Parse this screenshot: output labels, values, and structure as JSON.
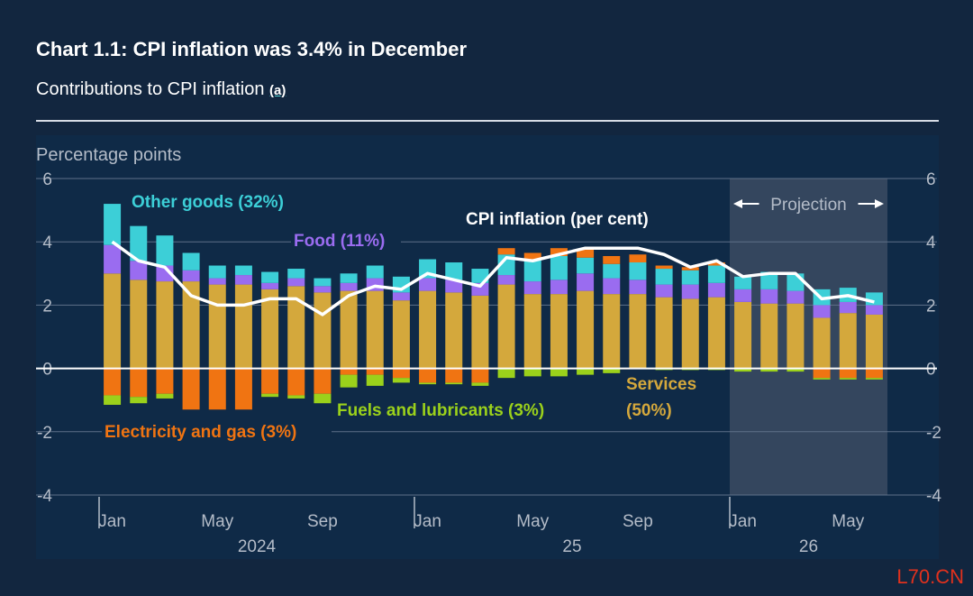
{
  "header": {
    "title": "Chart 1.1: CPI inflation was 3.4% in December",
    "subtitle": "Contributions to CPI inflation ",
    "footnote_marker": "(a)"
  },
  "watermark": "L70.CN",
  "colors": {
    "services": "#d4a83c",
    "food": "#9a6cf0",
    "other_goods": "#3ccfd7",
    "fuels": "#9bd11b",
    "electricity": "#f07412",
    "cpi_line": "#ffffff",
    "projection_bg": "#3b4b63"
  },
  "chart_data": {
    "type": "bar",
    "stacked": true,
    "title": "Chart 1.1: CPI inflation was 3.4% in December",
    "subtitle": "Contributions to CPI inflation (a)",
    "ylabel": "Percentage points",
    "ylim": [
      -4,
      6
    ],
    "yticks": [
      -4,
      -2,
      0,
      2,
      4,
      6
    ],
    "grid": true,
    "x_month_labels": [
      {
        "label": "Jan",
        "index": 0
      },
      {
        "label": "May",
        "index": 4
      },
      {
        "label": "Sep",
        "index": 8
      },
      {
        "label": "Jan",
        "index": 12
      },
      {
        "label": "May",
        "index": 16
      },
      {
        "label": "Sep",
        "index": 20
      },
      {
        "label": "Jan",
        "index": 24
      },
      {
        "label": "May",
        "index": 28
      }
    ],
    "x_year_labels": [
      {
        "label": "2024",
        "start": 0,
        "end": 11
      },
      {
        "label": "25",
        "start": 12,
        "end": 23
      },
      {
        "label": "26",
        "start": 24,
        "end": 29
      }
    ],
    "categories": [
      "Jan 2024",
      "Feb 2024",
      "Mar 2024",
      "Apr 2024",
      "May 2024",
      "Jun 2024",
      "Jul 2024",
      "Aug 2024",
      "Sep 2024",
      "Oct 2024",
      "Nov 2024",
      "Dec 2024",
      "Jan 2025",
      "Feb 2025",
      "Mar 2025",
      "Apr 2025",
      "May 2025",
      "Jun 2025",
      "Jul 2025",
      "Aug 2025",
      "Sep 2025",
      "Oct 2025",
      "Nov 2025",
      "Dec 2025",
      "Jan 2026",
      "Feb 2026",
      "Mar 2026",
      "Apr 2026",
      "May 2026",
      "Jun 2026"
    ],
    "projection": {
      "label": "Projection",
      "start_index": 24,
      "end_index": 29
    },
    "series": [
      {
        "name": "Services",
        "weight": "(50%)",
        "key": "services",
        "values": [
          3.0,
          2.8,
          2.75,
          2.75,
          2.65,
          2.65,
          2.5,
          2.6,
          2.4,
          2.45,
          2.45,
          2.15,
          2.45,
          2.4,
          2.3,
          2.65,
          2.35,
          2.35,
          2.45,
          2.35,
          2.35,
          2.25,
          2.2,
          2.25,
          2.1,
          2.05,
          2.05,
          1.6,
          1.75,
          1.7
        ]
      },
      {
        "name": "Food",
        "weight": "(11%)",
        "key": "food",
        "values": [
          0.9,
          0.6,
          0.5,
          0.35,
          0.2,
          0.3,
          0.2,
          0.25,
          0.2,
          0.25,
          0.4,
          0.25,
          0.4,
          0.4,
          0.4,
          0.3,
          0.4,
          0.45,
          0.55,
          0.5,
          0.45,
          0.4,
          0.45,
          0.45,
          0.4,
          0.45,
          0.4,
          0.4,
          0.35,
          0.3
        ]
      },
      {
        "name": "Other goods",
        "weight": "(32%)",
        "key": "other_goods",
        "values": [
          1.3,
          1.1,
          0.95,
          0.55,
          0.4,
          0.3,
          0.35,
          0.3,
          0.25,
          0.3,
          0.4,
          0.5,
          0.6,
          0.55,
          0.45,
          0.65,
          0.7,
          0.75,
          0.5,
          0.45,
          0.55,
          0.5,
          0.45,
          0.55,
          0.4,
          0.55,
          0.55,
          0.5,
          0.45,
          0.4
        ]
      },
      {
        "name": "Electricity and gas",
        "weight": "(3%)",
        "key": "electricity",
        "values": [
          -0.85,
          -0.9,
          -0.8,
          -1.3,
          -1.3,
          -1.3,
          -0.8,
          -0.85,
          -0.8,
          -0.2,
          -0.2,
          -0.3,
          -0.45,
          -0.45,
          -0.45,
          0.2,
          0.2,
          0.25,
          0.25,
          0.25,
          0.25,
          0.1,
          0.1,
          0.1,
          0.0,
          0.0,
          0.0,
          -0.3,
          -0.3,
          -0.3
        ]
      },
      {
        "name": "Fuels and lubricants",
        "weight": "(3%)",
        "key": "fuels",
        "values": [
          -0.3,
          -0.2,
          -0.15,
          0.0,
          0.0,
          0.0,
          -0.1,
          -0.1,
          -0.3,
          -0.4,
          -0.35,
          -0.15,
          -0.05,
          -0.05,
          -0.1,
          -0.3,
          -0.25,
          -0.25,
          -0.2,
          -0.15,
          0.0,
          -0.05,
          -0.05,
          -0.05,
          -0.1,
          -0.1,
          -0.1,
          -0.05,
          -0.05,
          -0.05
        ]
      }
    ],
    "line": {
      "name": "CPI inflation (per cent)",
      "values": [
        4.0,
        3.4,
        3.2,
        2.3,
        2.0,
        2.0,
        2.2,
        2.2,
        1.7,
        2.3,
        2.6,
        2.5,
        3.0,
        2.8,
        2.6,
        3.5,
        3.4,
        3.6,
        3.8,
        3.8,
        3.8,
        3.6,
        3.2,
        3.4,
        2.9,
        3.0,
        3.0,
        2.2,
        2.3,
        2.1
      ]
    },
    "annotations": [
      {
        "text": "Other goods (32%)",
        "series": "other_goods"
      },
      {
        "text": "Food (11%)",
        "series": "food"
      },
      {
        "text": "CPI inflation (per cent)",
        "series": "line"
      },
      {
        "text": "Services",
        "series": "services"
      },
      {
        "text": "(50%)",
        "series": "services"
      },
      {
        "text": "Fuels and lubricants (3%)",
        "series": "fuels"
      },
      {
        "text": "Electricity and gas (3%)",
        "series": "electricity"
      }
    ]
  }
}
